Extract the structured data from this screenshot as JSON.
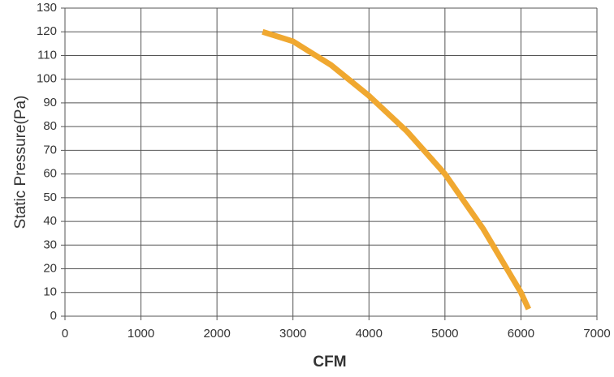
{
  "chart_data": {
    "type": "line",
    "x_label": "CFM",
    "y_label": "Static Pressure(Pa)",
    "x": [
      2600,
      3000,
      3500,
      4000,
      4500,
      5000,
      5500,
      6000,
      6100
    ],
    "series": [
      {
        "color": "#f0a830",
        "values": [
          120,
          116,
          106,
          93,
          78,
          60,
          37,
          10,
          3
        ]
      }
    ],
    "xlim": [
      0,
      7000
    ],
    "xticks": [
      0,
      1000,
      2000,
      3000,
      4000,
      5000,
      6000,
      7000
    ],
    "ylim": [
      0,
      130
    ],
    "yticks": [
      0,
      10,
      20,
      30,
      40,
      50,
      60,
      70,
      80,
      90,
      100,
      110,
      120,
      130
    ],
    "grid": true
  }
}
